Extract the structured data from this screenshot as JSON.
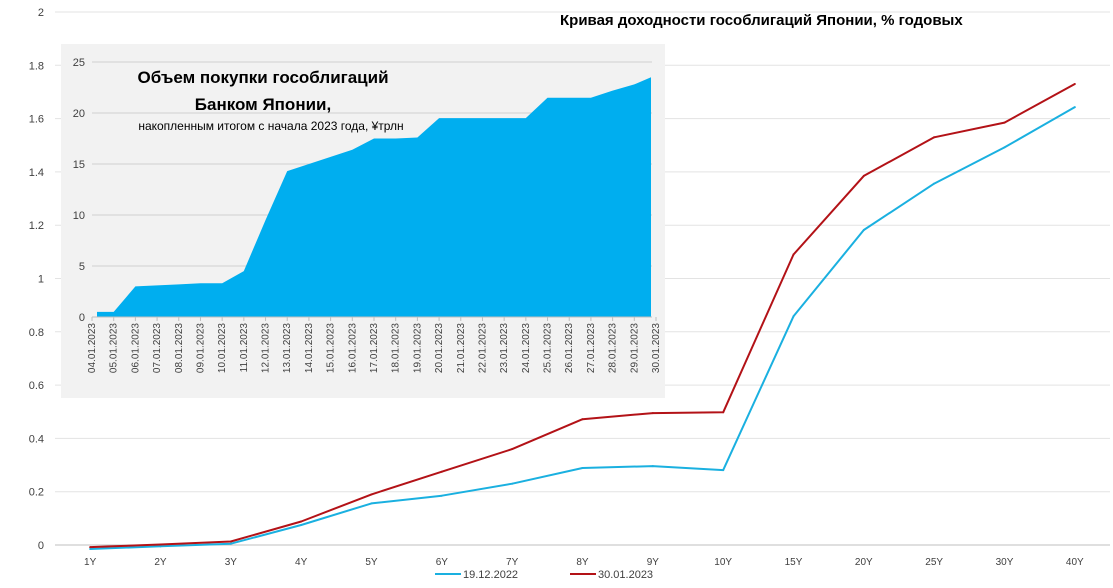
{
  "chart_data": [
    {
      "type": "line",
      "title": "Кривая доходности гособлигаций Японии, % годовых",
      "categories": [
        "1Y",
        "2Y",
        "3Y",
        "4Y",
        "5Y",
        "6Y",
        "7Y",
        "8Y",
        "9Y",
        "10Y",
        "15Y",
        "20Y",
        "25Y",
        "30Y",
        "40Y"
      ],
      "ylim": [
        0,
        2
      ],
      "yticks": [
        "0",
        "0.2",
        "0.4",
        "0.6",
        "0.8",
        "1",
        "1.2",
        "1.4",
        "1.6",
        "1.8",
        "2"
      ],
      "grid": "horizontal",
      "legend": "bottom-center",
      "series": [
        {
          "name": "19.12.2022",
          "color": "#1ab0e0",
          "values": [
            -0.015,
            -0.005,
            0.005,
            0.075,
            0.156,
            0.185,
            0.23,
            0.289,
            0.296,
            0.281,
            0.858,
            1.182,
            1.356,
            1.492,
            1.643
          ]
        },
        {
          "name": "30.01.2023",
          "color": "#b31217",
          "values": [
            -0.008,
            0.002,
            0.013,
            0.088,
            0.19,
            0.275,
            0.36,
            0.472,
            0.495,
            0.498,
            1.09,
            1.385,
            1.53,
            1.585,
            1.73
          ]
        }
      ]
    },
    {
      "type": "area",
      "title": "Объем покупки гособлигаций",
      "title_line2": "Банком Японии,",
      "subtitle": "накопленным итогом с начала  2023 года, ¥трлн",
      "ylim": [
        0,
        25
      ],
      "yticks": [
        "0",
        "5",
        "10",
        "15",
        "20",
        "25"
      ],
      "color": "#00aeef",
      "x": [
        "04.01.2023",
        "05.01.2023",
        "06.01.2023",
        "07.01.2023",
        "08.01.2023",
        "09.01.2023",
        "10.01.2023",
        "11.01.2023",
        "12.01.2023",
        "13.01.2023",
        "14.01.2023",
        "15.01.2023",
        "16.01.2023",
        "17.01.2023",
        "18.01.2023",
        "19.01.2023",
        "20.01.2023",
        "21.01.2023",
        "22.01.2023",
        "23.01.2023",
        "24.01.2023",
        "25.01.2023",
        "26.01.2023",
        "27.01.2023",
        "28.01.2023",
        "29.01.2023",
        "30.01.2023"
      ],
      "values": [
        0.5,
        0.5,
        3.0,
        3.1,
        3.2,
        3.3,
        3.3,
        4.5,
        9.5,
        14.3,
        15.0,
        15.7,
        16.4,
        17.5,
        17.5,
        17.6,
        19.5,
        19.5,
        19.5,
        19.5,
        19.5,
        21.5,
        21.5,
        21.5,
        22.2,
        22.8,
        23.5
      ]
    }
  ]
}
